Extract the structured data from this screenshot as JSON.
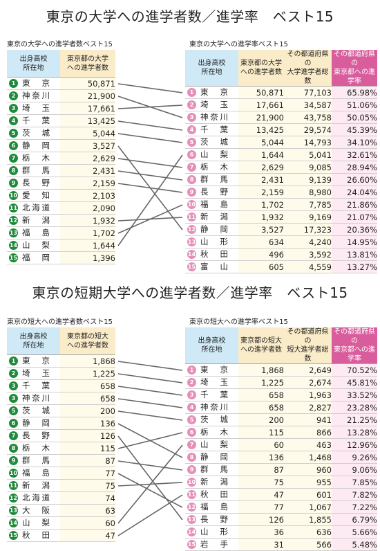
{
  "section1": {
    "title": "東京の大学への進学者数／進学率　ベスト15",
    "left_caption": "東京の大学への進学者数ベスト15",
    "right_caption": "東京の大学への進学率ベスト15",
    "left_headers": [
      "出身高校\n所在地",
      "東京都の大学\nへの進学者数"
    ],
    "right_headers": [
      "出身高校\n所在地",
      "東京都の大学\nへの進学者数",
      "その都道府県の\n大学進学者総数",
      "その都道府県の\n東京都への進学率"
    ],
    "left_rows": [
      {
        "rank": "1",
        "pref": "東京",
        "num": "50,871"
      },
      {
        "rank": "2",
        "pref": "神奈川",
        "num": "21,900"
      },
      {
        "rank": "3",
        "pref": "埼玉",
        "num": "17,661"
      },
      {
        "rank": "4",
        "pref": "千葉",
        "num": "13,425"
      },
      {
        "rank": "5",
        "pref": "茨城",
        "num": "5,044"
      },
      {
        "rank": "6",
        "pref": "静岡",
        "num": "3,527"
      },
      {
        "rank": "7",
        "pref": "栃木",
        "num": "2,629"
      },
      {
        "rank": "8",
        "pref": "群馬",
        "num": "2,431"
      },
      {
        "rank": "9",
        "pref": "長野",
        "num": "2,159"
      },
      {
        "rank": "10",
        "pref": "愛知",
        "num": "2,103"
      },
      {
        "rank": "11",
        "pref": "北海道",
        "num": "2,090"
      },
      {
        "rank": "12",
        "pref": "新潟",
        "num": "1,932"
      },
      {
        "rank": "13",
        "pref": "福島",
        "num": "1,702"
      },
      {
        "rank": "14",
        "pref": "山梨",
        "num": "1,644"
      },
      {
        "rank": "15",
        "pref": "福岡",
        "num": "1,396"
      }
    ],
    "right_rows": [
      {
        "rank": "1",
        "pref": "東京",
        "num": "50,871",
        "total": "77,103",
        "rate": "65.98%"
      },
      {
        "rank": "2",
        "pref": "埼玉",
        "num": "17,661",
        "total": "34,587",
        "rate": "51.06%"
      },
      {
        "rank": "3",
        "pref": "神奈川",
        "num": "21,900",
        "total": "43,758",
        "rate": "50.05%"
      },
      {
        "rank": "4",
        "pref": "千葉",
        "num": "13,425",
        "total": "29,574",
        "rate": "45.39%"
      },
      {
        "rank": "5",
        "pref": "茨城",
        "num": "5,044",
        "total": "14,793",
        "rate": "34.10%"
      },
      {
        "rank": "6",
        "pref": "山梨",
        "num": "1,644",
        "total": "5,041",
        "rate": "32.61%"
      },
      {
        "rank": "7",
        "pref": "栃木",
        "num": "2,629",
        "total": "9,085",
        "rate": "28.94%"
      },
      {
        "rank": "8",
        "pref": "群馬",
        "num": "2,431",
        "total": "9,139",
        "rate": "26.60%"
      },
      {
        "rank": "9",
        "pref": "長野",
        "num": "2,159",
        "total": "8,980",
        "rate": "24.04%"
      },
      {
        "rank": "10",
        "pref": "福島",
        "num": "1,702",
        "total": "7,785",
        "rate": "21.86%"
      },
      {
        "rank": "11",
        "pref": "新潟",
        "num": "1,932",
        "total": "9,169",
        "rate": "21.07%"
      },
      {
        "rank": "12",
        "pref": "静岡",
        "num": "3,527",
        "total": "17,323",
        "rate": "20.36%"
      },
      {
        "rank": "13",
        "pref": "山形",
        "num": "634",
        "total": "4,240",
        "rate": "14.95%"
      },
      {
        "rank": "14",
        "pref": "秋田",
        "num": "496",
        "total": "3,592",
        "rate": "13.81%"
      },
      {
        "rank": "15",
        "pref": "富山",
        "num": "605",
        "total": "4,559",
        "rate": "13.27%"
      }
    ]
  },
  "section2": {
    "title": "東京の短期大学への進学者数／進学率　ベスト15",
    "left_caption": "東京の短大への進学者数ベスト15",
    "right_caption": "東京の短大への進学率ベスト15",
    "left_headers": [
      "出身高校\n所在地",
      "東京都の短大\nへの進学者数"
    ],
    "right_headers": [
      "出身高校\n所在地",
      "東京都の短大\nへの進学者数",
      "その都道府県の\n短大進学者総数",
      "その都道府県の\n東京都への進学率"
    ],
    "left_rows": [
      {
        "rank": "1",
        "pref": "東京",
        "num": "1,868"
      },
      {
        "rank": "2",
        "pref": "埼玉",
        "num": "1,225"
      },
      {
        "rank": "3",
        "pref": "千葉",
        "num": "658"
      },
      {
        "rank": "3",
        "pref": "神奈川",
        "num": "658"
      },
      {
        "rank": "5",
        "pref": "茨城",
        "num": "200"
      },
      {
        "rank": "6",
        "pref": "静岡",
        "num": "136"
      },
      {
        "rank": "7",
        "pref": "長野",
        "num": "126"
      },
      {
        "rank": "8",
        "pref": "栃木",
        "num": "115"
      },
      {
        "rank": "9",
        "pref": "群馬",
        "num": "87"
      },
      {
        "rank": "10",
        "pref": "福島",
        "num": "77"
      },
      {
        "rank": "11",
        "pref": "新潟",
        "num": "75"
      },
      {
        "rank": "12",
        "pref": "北海道",
        "num": "74"
      },
      {
        "rank": "13",
        "pref": "大阪",
        "num": "63"
      },
      {
        "rank": "14",
        "pref": "山梨",
        "num": "60"
      },
      {
        "rank": "15",
        "pref": "秋田",
        "num": "47"
      }
    ],
    "right_rows": [
      {
        "rank": "1",
        "pref": "東京",
        "num": "1,868",
        "total": "2,649",
        "rate": "70.52%"
      },
      {
        "rank": "2",
        "pref": "埼玉",
        "num": "1,225",
        "total": "2,674",
        "rate": "45.81%"
      },
      {
        "rank": "3",
        "pref": "千葉",
        "num": "658",
        "total": "1,963",
        "rate": "33.52%"
      },
      {
        "rank": "4",
        "pref": "神奈川",
        "num": "658",
        "total": "2,827",
        "rate": "23.28%"
      },
      {
        "rank": "5",
        "pref": "茨城",
        "num": "200",
        "total": "941",
        "rate": "21.25%"
      },
      {
        "rank": "6",
        "pref": "栃木",
        "num": "115",
        "total": "866",
        "rate": "13.28%"
      },
      {
        "rank": "7",
        "pref": "山梨",
        "num": "60",
        "total": "463",
        "rate": "12.96%"
      },
      {
        "rank": "8",
        "pref": "静岡",
        "num": "136",
        "total": "1,468",
        "rate": "9.26%"
      },
      {
        "rank": "9",
        "pref": "群馬",
        "num": "87",
        "total": "960",
        "rate": "9.06%"
      },
      {
        "rank": "10",
        "pref": "新潟",
        "num": "75",
        "total": "955",
        "rate": "7.85%"
      },
      {
        "rank": "11",
        "pref": "秋田",
        "num": "47",
        "total": "601",
        "rate": "7.82%"
      },
      {
        "rank": "12",
        "pref": "福島",
        "num": "77",
        "total": "1,067",
        "rate": "7.22%"
      },
      {
        "rank": "13",
        "pref": "長野",
        "num": "126",
        "total": "1,855",
        "rate": "6.79%"
      },
      {
        "rank": "14",
        "pref": "山形",
        "num": "36",
        "total": "636",
        "rate": "5.66%"
      },
      {
        "rank": "15",
        "pref": "岩手",
        "num": "31",
        "total": "566",
        "rate": "5.48%"
      }
    ]
  },
  "colors": {
    "left_badge": "#1f8a3a",
    "right_badge": "#e58fb8",
    "rate_header": "#d95c9c",
    "location_header": "#cfe9f6",
    "number_header": "#fbecc9"
  }
}
